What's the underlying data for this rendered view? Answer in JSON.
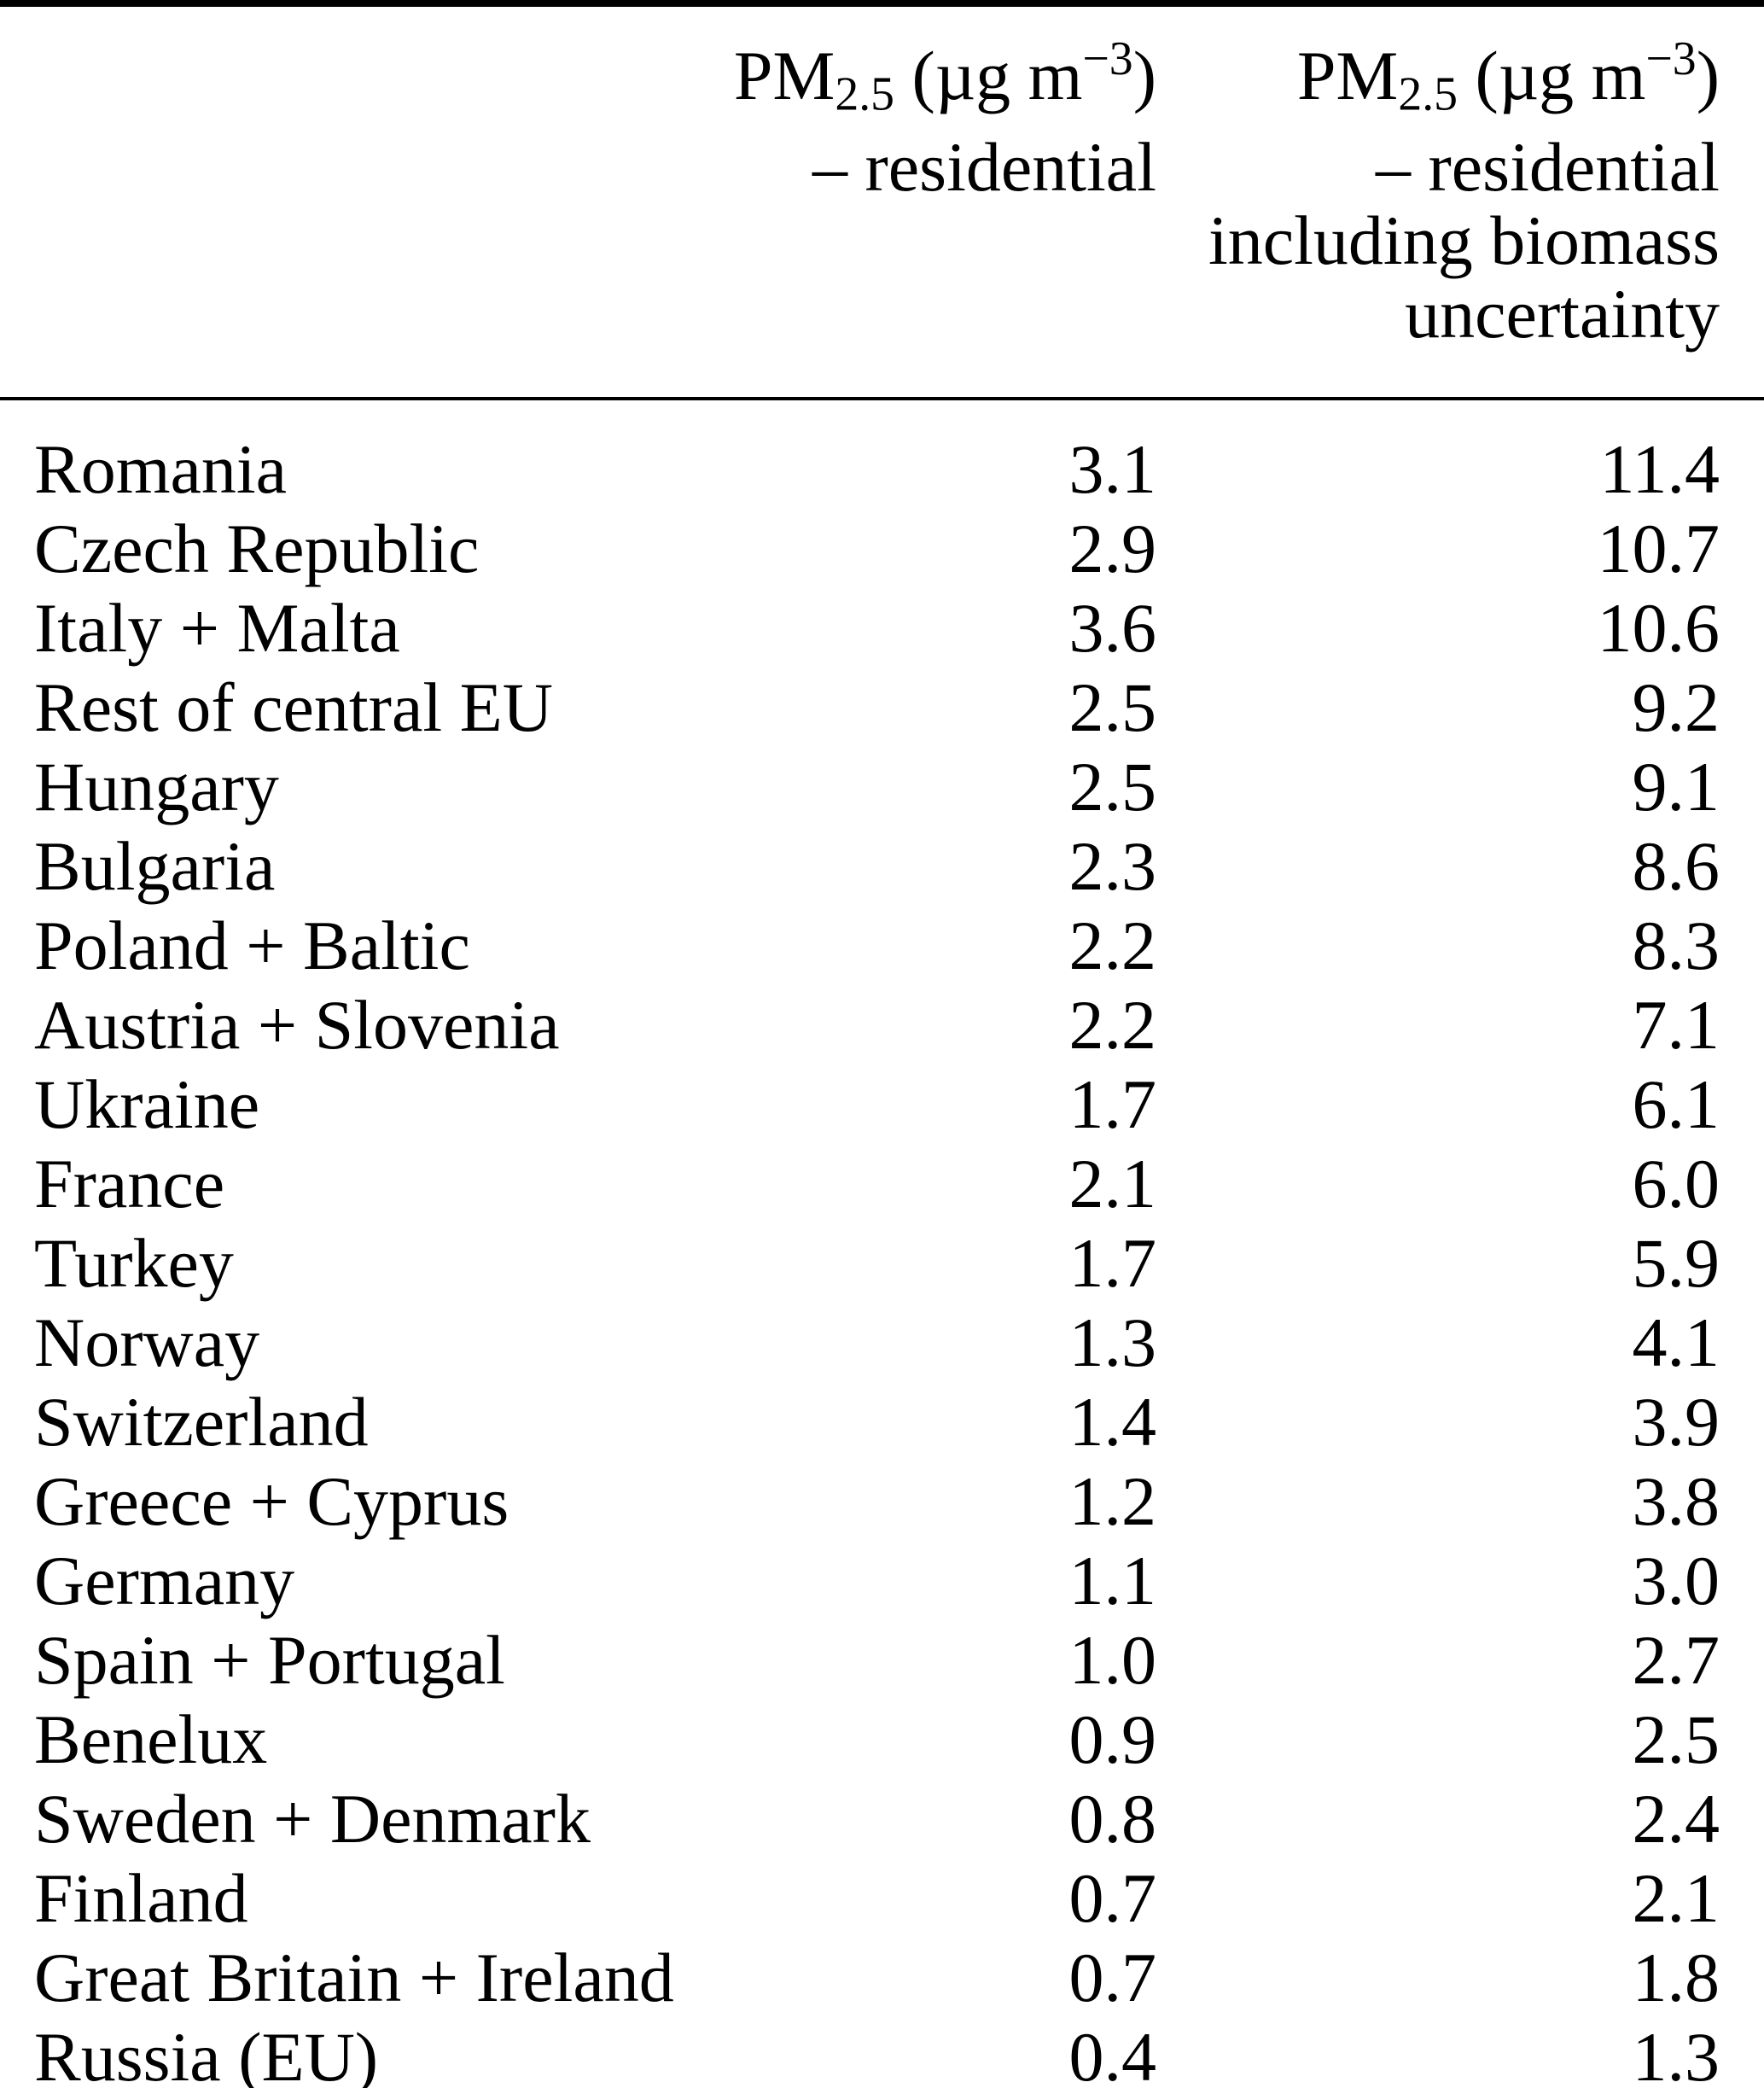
{
  "table": {
    "header": {
      "col1": {
        "line1": {
          "pm": "PM",
          "sub": "2.5",
          "mid": " (µg m",
          "sup": "−3",
          "end": ")"
        },
        "line2": "– residential"
      },
      "col2": {
        "line1": {
          "pm": "PM",
          "sub": "2.5",
          "mid": " (µg m",
          "sup": "−3",
          "end": ")"
        },
        "line2": "– residential",
        "line3": "including biomass",
        "line4": "uncertainty"
      }
    },
    "rows": [
      {
        "label": "Romania",
        "residential": "3.1",
        "residential_biomass": "11.4"
      },
      {
        "label": "Czech Republic",
        "residential": "2.9",
        "residential_biomass": "10.7"
      },
      {
        "label": "Italy + Malta",
        "residential": "3.6",
        "residential_biomass": "10.6"
      },
      {
        "label": "Rest of central EU",
        "residential": "2.5",
        "residential_biomass": "9.2"
      },
      {
        "label": "Hungary",
        "residential": "2.5",
        "residential_biomass": "9.1"
      },
      {
        "label": "Bulgaria",
        "residential": "2.3",
        "residential_biomass": "8.6"
      },
      {
        "label": "Poland + Baltic",
        "residential": "2.2",
        "residential_biomass": "8.3"
      },
      {
        "label": "Austria + Slovenia",
        "residential": "2.2",
        "residential_biomass": "7.1"
      },
      {
        "label": "Ukraine",
        "residential": "1.7",
        "residential_biomass": "6.1"
      },
      {
        "label": "France",
        "residential": "2.1",
        "residential_biomass": "6.0"
      },
      {
        "label": "Turkey",
        "residential": "1.7",
        "residential_biomass": "5.9"
      },
      {
        "label": "Norway",
        "residential": "1.3",
        "residential_biomass": "4.1"
      },
      {
        "label": "Switzerland",
        "residential": "1.4",
        "residential_biomass": "3.9"
      },
      {
        "label": "Greece + Cyprus",
        "residential": "1.2",
        "residential_biomass": "3.8"
      },
      {
        "label": "Germany",
        "residential": "1.1",
        "residential_biomass": "3.0"
      },
      {
        "label": "Spain + Portugal",
        "residential": "1.0",
        "residential_biomass": "2.7"
      },
      {
        "label": "Benelux",
        "residential": "0.9",
        "residential_biomass": "2.5"
      },
      {
        "label": "Sweden + Denmark",
        "residential": "0.8",
        "residential_biomass": "2.4"
      },
      {
        "label": "Finland",
        "residential": "0.7",
        "residential_biomass": "2.1"
      },
      {
        "label": "Great Britain + Ireland",
        "residential": "0.7",
        "residential_biomass": "1.8"
      },
      {
        "label": "Russia (EU)",
        "residential": "0.4",
        "residential_biomass": "1.3"
      }
    ]
  }
}
